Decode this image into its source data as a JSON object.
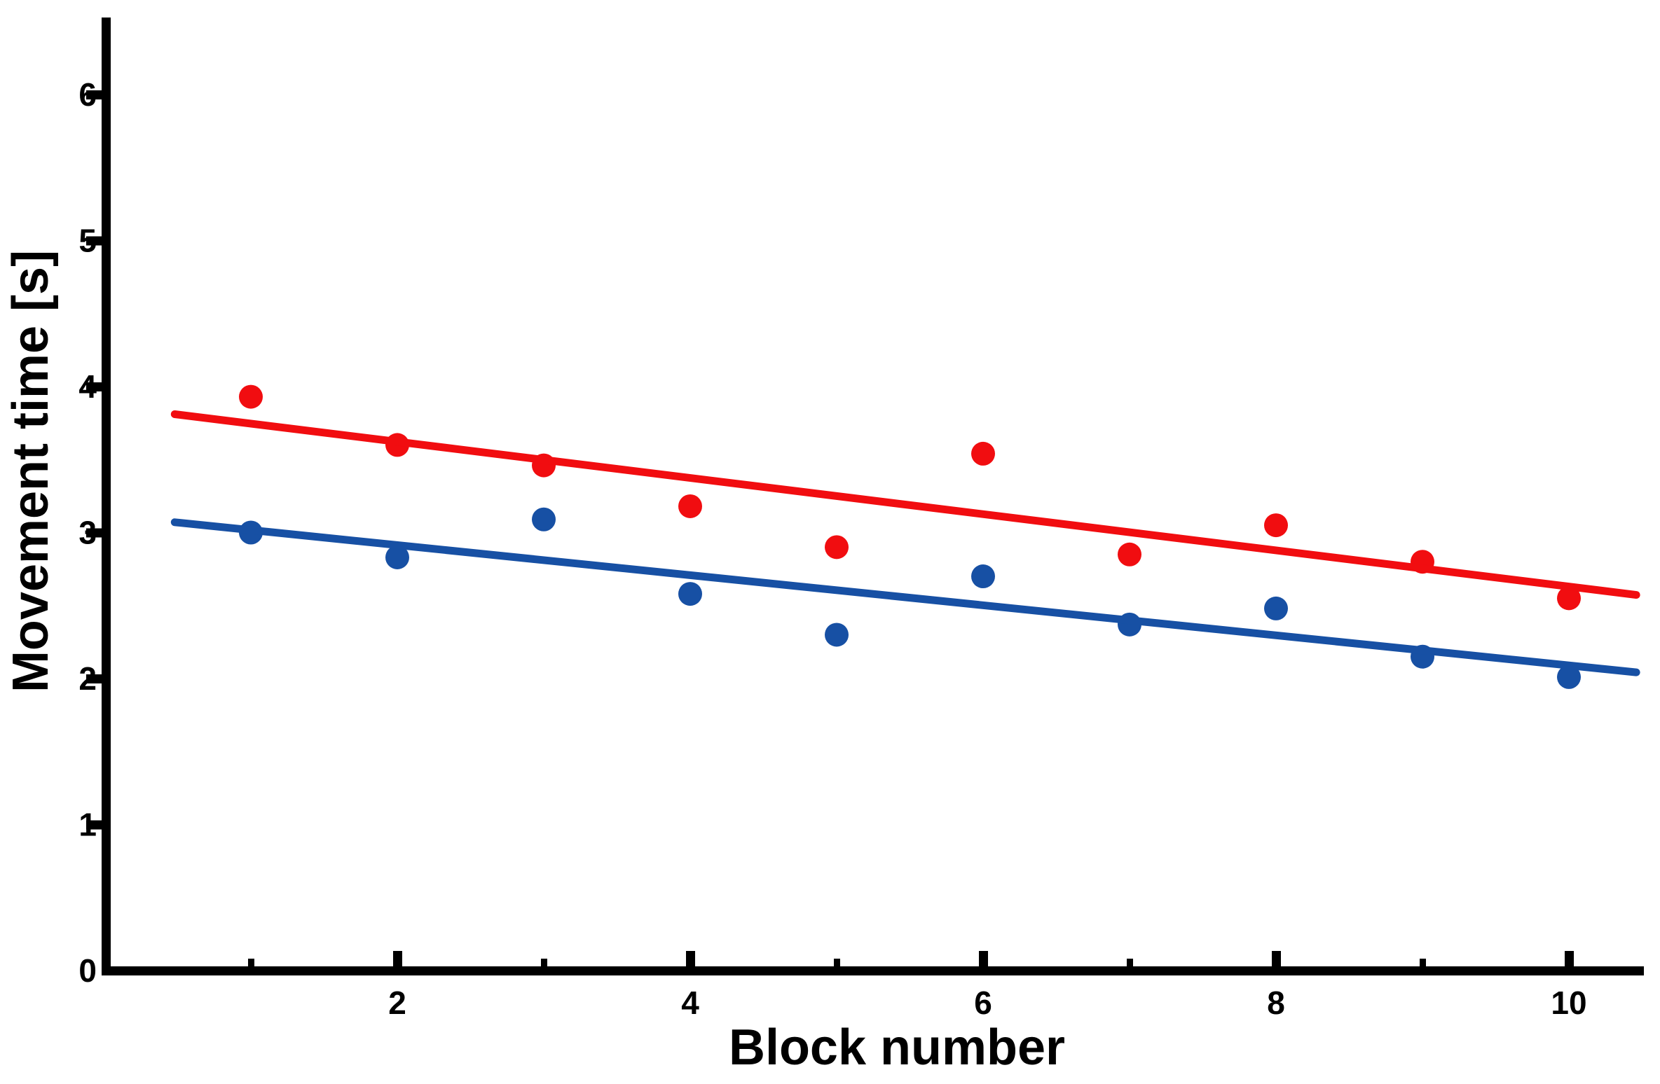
{
  "chart_data": {
    "type": "scatter",
    "title": "",
    "xlabel": "Block number",
    "ylabel": "Movement time [s]",
    "x": [
      1,
      2,
      3,
      4,
      5,
      6,
      7,
      8,
      9,
      10
    ],
    "series": [
      {
        "name": "red",
        "color": "#F10D10",
        "values": [
          3.93,
          3.6,
          3.46,
          3.18,
          2.9,
          3.54,
          2.85,
          3.05,
          2.8,
          2.55
        ],
        "trend": {
          "slope": -0.124,
          "intercept": 3.87,
          "x_start": 0.48,
          "x_end": 10.46
        }
      },
      {
        "name": "blue",
        "color": "#1750A4",
        "values": [
          3.0,
          2.83,
          3.09,
          2.58,
          2.3,
          2.7,
          2.37,
          2.48,
          2.15,
          2.01
        ],
        "trend": {
          "slope": -0.103,
          "intercept": 3.12,
          "x_start": 0.48,
          "x_end": 10.46
        }
      }
    ],
    "xticks_major": [
      2,
      4,
      6,
      8,
      10
    ],
    "xticks_minor": [
      1,
      3,
      5,
      7,
      9
    ],
    "yticks": [
      0,
      1,
      2,
      3,
      4,
      5,
      6
    ],
    "xlim": [
      0,
      10.55
    ],
    "ylim": [
      0,
      6.55
    ],
    "grid": false,
    "legend": "none",
    "marker_shape": "circle",
    "axis_color": "#000000"
  }
}
